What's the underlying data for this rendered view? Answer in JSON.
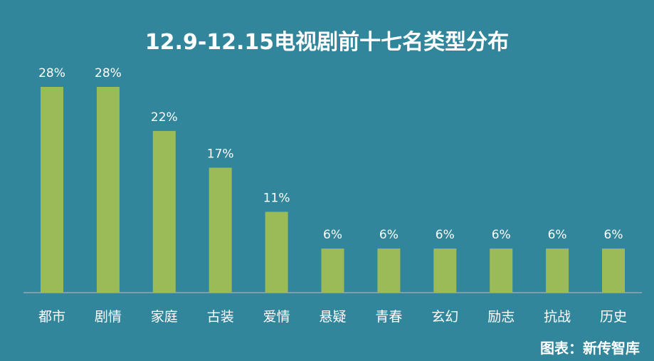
{
  "chart_data": {
    "type": "bar",
    "title": "12.9-12.15电视剧前十七名类型分布",
    "categories": [
      "都市",
      "剧情",
      "家庭",
      "古装",
      "爱情",
      "悬疑",
      "青春",
      "玄幻",
      "励志",
      "抗战",
      "历史"
    ],
    "values": [
      28,
      28,
      22,
      17,
      11,
      6,
      6,
      6,
      6,
      6,
      6
    ],
    "data_labels": [
      "28%",
      "28%",
      "22%",
      "17%",
      "11%",
      "6%",
      "6%",
      "6%",
      "6%",
      "6%",
      "6%"
    ],
    "unit": "%",
    "xlabel": "",
    "ylabel": "",
    "ylim": [
      0,
      28
    ],
    "grid": false,
    "legend": "none"
  },
  "source": "图表：新传智库",
  "colors": {
    "background": "#31869b",
    "bar": "#9bbb59",
    "axis": "#9aa6ab",
    "text": "#ffffff"
  }
}
